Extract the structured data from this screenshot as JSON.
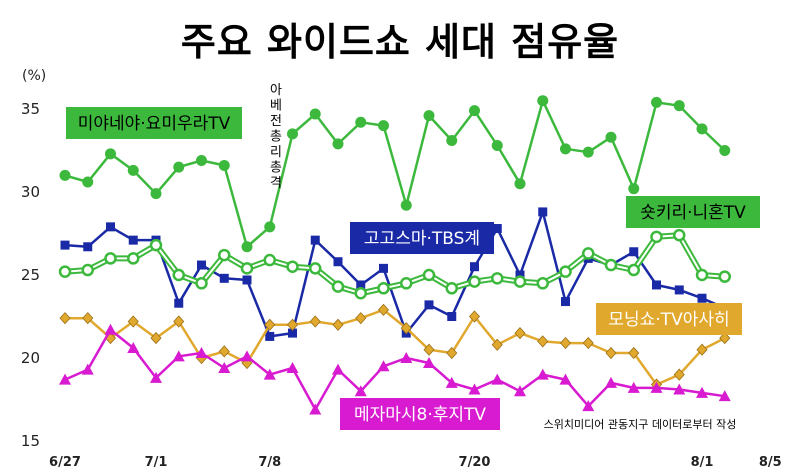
{
  "chart_data": {
    "type": "line",
    "title": "주요 와이드쇼 세대 점유율",
    "ylabel": "(%)",
    "ylim": [
      15,
      37
    ],
    "yticks": [
      15,
      20,
      25,
      30,
      35
    ],
    "x_tick_labels": [
      {
        "index": 0,
        "label": "6/27"
      },
      {
        "index": 4,
        "label": "7/1"
      },
      {
        "index": 9,
        "label": "7/8"
      },
      {
        "index": 18,
        "label": "7/20"
      },
      {
        "index": 28,
        "label": "8/1"
      },
      {
        "index": 31,
        "label": "8/5"
      }
    ],
    "annotation": "아베전총리총격",
    "source_note": "스위치미디어 관동지구 데이터로부터 작성",
    "grid": false,
    "series": [
      {
        "name": "미야네야·요미우라TV",
        "color": "#3cb93c",
        "marker": "circle",
        "style": "solid",
        "values": [
          31.0,
          30.6,
          32.3,
          31.3,
          29.9,
          31.5,
          31.9,
          31.6,
          26.7,
          27.9,
          33.5,
          34.7,
          32.9,
          34.2,
          34.0,
          29.2,
          34.6,
          33.1,
          34.9,
          32.8,
          30.5,
          35.5,
          32.6,
          32.4,
          33.3,
          30.2,
          35.4,
          35.2,
          33.8,
          32.5
        ]
      },
      {
        "name": "고고스마·TBS계",
        "color": "#1a2aa6",
        "marker": "square",
        "style": "solid",
        "values": [
          26.8,
          26.7,
          27.9,
          27.1,
          27.1,
          23.3,
          25.6,
          24.8,
          24.7,
          21.3,
          21.5,
          27.1,
          25.8,
          24.4,
          25.4,
          21.5,
          23.2,
          22.5,
          25.5,
          27.8,
          25.0,
          28.8,
          23.4,
          26.0,
          25.6,
          26.4,
          24.4,
          24.1,
          23.6,
          23.0
        ]
      },
      {
        "name": "숏키리·니혼TV",
        "color": "#3cb93c",
        "marker": "open-circle",
        "style": "double",
        "values": [
          25.2,
          25.3,
          26.0,
          26.0,
          26.8,
          25.0,
          24.5,
          26.2,
          25.4,
          25.9,
          25.5,
          25.4,
          24.3,
          23.9,
          24.2,
          24.5,
          25.0,
          24.2,
          24.6,
          24.8,
          24.6,
          24.5,
          25.2,
          26.3,
          25.6,
          25.3,
          27.3,
          27.4,
          25.0,
          24.9
        ]
      },
      {
        "name": "모닝쇼·TV아사히",
        "color": "#e1a82e",
        "marker": "diamond",
        "style": "solid",
        "values": [
          22.4,
          22.4,
          21.2,
          22.2,
          21.2,
          22.2,
          20.0,
          20.4,
          19.7,
          22.0,
          22.0,
          22.2,
          22.0,
          22.4,
          22.9,
          21.8,
          20.5,
          20.3,
          22.5,
          20.8,
          21.5,
          21.0,
          20.9,
          20.9,
          20.3,
          20.3,
          18.4,
          19.0,
          20.5,
          21.2
        ]
      },
      {
        "name": "메자마시8·후지TV",
        "color": "#d81ad0",
        "marker": "triangle",
        "style": "solid",
        "values": [
          18.7,
          19.3,
          21.7,
          20.6,
          18.8,
          20.1,
          20.3,
          19.4,
          20.1,
          19.0,
          19.4,
          16.9,
          19.3,
          18.0,
          19.5,
          20.0,
          19.7,
          18.5,
          18.1,
          18.7,
          18.0,
          19.0,
          18.7,
          17.1,
          18.5,
          18.2,
          18.2,
          18.1,
          17.9,
          17.7
        ]
      }
    ]
  },
  "labels": {
    "miyaneya": "미야네야·요미우라TV",
    "gogosuma": "고고스마·TBS계",
    "sukkiri": "숏키리·니혼TV",
    "morning": "모닝쇼·TV아사히",
    "mezamashi": "메자마시8·후지TV"
  },
  "label_colors": {
    "miyaneya": "#3cb93c",
    "gogosuma": "#1a2aa6",
    "sukkiri": "#3cb93c",
    "morning": "#e1a82e",
    "mezamashi": "#d81ad0"
  }
}
